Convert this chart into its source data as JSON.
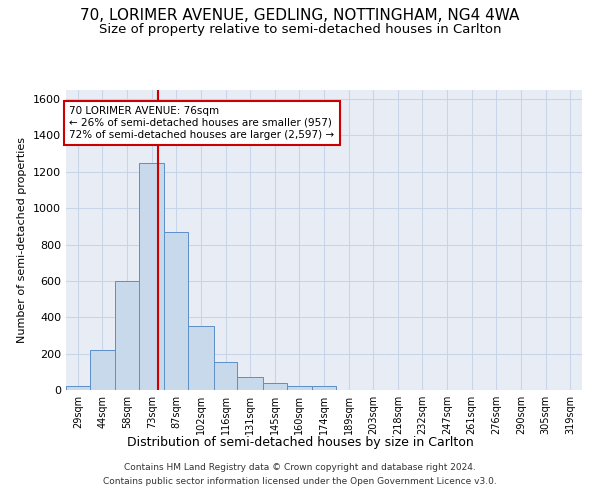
{
  "title_line1": "70, LORIMER AVENUE, GEDLING, NOTTINGHAM, NG4 4WA",
  "title_line2": "Size of property relative to semi-detached houses in Carlton",
  "xlabel": "Distribution of semi-detached houses by size in Carlton",
  "ylabel": "Number of semi-detached properties",
  "footer_line1": "Contains HM Land Registry data © Crown copyright and database right 2024.",
  "footer_line2": "Contains public sector information licensed under the Open Government Licence v3.0.",
  "annotation_line1": "70 LORIMER AVENUE: 76sqm",
  "annotation_line2": "← 26% of semi-detached houses are smaller (957)",
  "annotation_line3": "72% of semi-detached houses are larger (2,597) →",
  "property_size": 76,
  "bin_edges": [
    22,
    36,
    51,
    65,
    80,
    94,
    109,
    123,
    138,
    152,
    167,
    181,
    196,
    210,
    225,
    239,
    254,
    268,
    283,
    297,
    312,
    326
  ],
  "bar_heights": [
    20,
    220,
    600,
    1250,
    870,
    350,
    155,
    70,
    40,
    20,
    20,
    0,
    0,
    0,
    0,
    0,
    0,
    0,
    0,
    0,
    0
  ],
  "tick_labels": [
    "29sqm",
    "44sqm",
    "58sqm",
    "73sqm",
    "87sqm",
    "102sqm",
    "116sqm",
    "131sqm",
    "145sqm",
    "160sqm",
    "174sqm",
    "189sqm",
    "203sqm",
    "218sqm",
    "232sqm",
    "247sqm",
    "261sqm",
    "276sqm",
    "290sqm",
    "305sqm",
    "319sqm"
  ],
  "bar_color": "#c9d9ec",
  "bar_edge_color": "#5b8fc9",
  "vline_color": "#cc0000",
  "ylim": [
    0,
    1650
  ],
  "yticks": [
    0,
    200,
    400,
    600,
    800,
    1000,
    1200,
    1400,
    1600
  ],
  "grid_color": "#c8d4e8",
  "bg_color": "#e8edf5",
  "annotation_box_color": "#cc0000",
  "title_fontsize": 11,
  "subtitle_fontsize": 9.5
}
